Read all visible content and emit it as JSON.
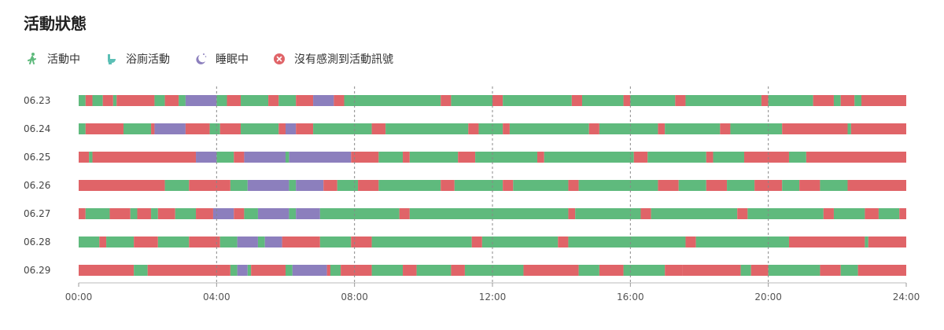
{
  "title": "活動狀態",
  "legend": [
    {
      "key": "active",
      "label": "活動中",
      "color": "#5fba7d",
      "icon": "walking-person-icon"
    },
    {
      "key": "bath",
      "label": "浴廁活動",
      "color": "#5bbfb5",
      "icon": "toilet-icon"
    },
    {
      "key": "sleep",
      "label": "睡眠中",
      "color": "#8c7fbd",
      "icon": "moon-sleep-icon"
    },
    {
      "key": "none",
      "label": "沒有感測到活動訊號",
      "color": "#e06468",
      "icon": "x-circle-icon"
    }
  ],
  "chart_data": {
    "type": "timeline",
    "x_unit": "hours",
    "xlim": [
      0,
      24
    ],
    "xticks": [
      "00:00",
      "04:00",
      "08:00",
      "12:00",
      "16:00",
      "20:00",
      "24:00"
    ],
    "grid_vertical": true,
    "colors": {
      "active": "#5fba7d",
      "bath": "#5bbfb5",
      "sleep": "#8c7fbd",
      "none": "#e06468"
    },
    "rows": [
      {
        "label": "06.23",
        "segments": [
          [
            0,
            0.2,
            "active"
          ],
          [
            0.2,
            0.4,
            "none"
          ],
          [
            0.4,
            0.7,
            "active"
          ],
          [
            0.7,
            1.0,
            "none"
          ],
          [
            1.0,
            1.1,
            "active"
          ],
          [
            1.1,
            2.2,
            "none"
          ],
          [
            2.2,
            2.5,
            "active"
          ],
          [
            2.5,
            2.9,
            "none"
          ],
          [
            2.9,
            3.1,
            "active"
          ],
          [
            3.1,
            4.0,
            "sleep"
          ],
          [
            4.0,
            4.3,
            "active"
          ],
          [
            4.3,
            4.7,
            "none"
          ],
          [
            4.7,
            5.5,
            "active"
          ],
          [
            5.5,
            5.8,
            "none"
          ],
          [
            5.8,
            6.3,
            "active"
          ],
          [
            6.3,
            6.8,
            "none"
          ],
          [
            6.8,
            7.4,
            "sleep"
          ],
          [
            7.4,
            7.7,
            "none"
          ],
          [
            7.7,
            10.5,
            "active"
          ],
          [
            10.5,
            10.8,
            "none"
          ],
          [
            10.8,
            12.0,
            "active"
          ],
          [
            12.0,
            12.3,
            "none"
          ],
          [
            12.3,
            14.3,
            "active"
          ],
          [
            14.3,
            14.6,
            "none"
          ],
          [
            14.6,
            15.8,
            "active"
          ],
          [
            15.8,
            16.0,
            "none"
          ],
          [
            16.0,
            17.3,
            "active"
          ],
          [
            17.3,
            17.6,
            "none"
          ],
          [
            17.6,
            19.8,
            "active"
          ],
          [
            19.8,
            20.0,
            "none"
          ],
          [
            20.0,
            21.3,
            "active"
          ],
          [
            21.3,
            21.9,
            "none"
          ],
          [
            21.9,
            22.1,
            "active"
          ],
          [
            22.1,
            22.5,
            "none"
          ],
          [
            22.5,
            22.7,
            "active"
          ],
          [
            22.7,
            24.0,
            "none"
          ]
        ]
      },
      {
        "label": "06.24",
        "segments": [
          [
            0,
            0.2,
            "active"
          ],
          [
            0.2,
            1.3,
            "none"
          ],
          [
            1.3,
            2.1,
            "active"
          ],
          [
            2.1,
            2.2,
            "none"
          ],
          [
            2.2,
            3.1,
            "sleep"
          ],
          [
            3.1,
            3.8,
            "none"
          ],
          [
            3.8,
            4.1,
            "active"
          ],
          [
            4.1,
            4.7,
            "none"
          ],
          [
            4.7,
            5.8,
            "active"
          ],
          [
            5.8,
            6.0,
            "none"
          ],
          [
            6.0,
            6.3,
            "sleep"
          ],
          [
            6.3,
            6.8,
            "none"
          ],
          [
            6.8,
            8.5,
            "active"
          ],
          [
            8.5,
            8.9,
            "none"
          ],
          [
            8.9,
            11.3,
            "active"
          ],
          [
            11.3,
            11.6,
            "none"
          ],
          [
            11.6,
            12.3,
            "active"
          ],
          [
            12.3,
            12.5,
            "none"
          ],
          [
            12.5,
            14.8,
            "active"
          ],
          [
            14.8,
            15.1,
            "none"
          ],
          [
            15.1,
            16.8,
            "active"
          ],
          [
            16.8,
            17.0,
            "none"
          ],
          [
            17.0,
            18.6,
            "active"
          ],
          [
            18.6,
            18.9,
            "none"
          ],
          [
            18.9,
            20.4,
            "active"
          ],
          [
            20.4,
            22.3,
            "none"
          ],
          [
            22.3,
            22.4,
            "active"
          ],
          [
            22.4,
            24.0,
            "none"
          ]
        ]
      },
      {
        "label": "06.25",
        "segments": [
          [
            0,
            0.3,
            "none"
          ],
          [
            0.3,
            0.4,
            "active"
          ],
          [
            0.4,
            3.4,
            "none"
          ],
          [
            3.4,
            4.0,
            "sleep"
          ],
          [
            4.0,
            4.5,
            "active"
          ],
          [
            4.5,
            4.8,
            "none"
          ],
          [
            4.8,
            6.0,
            "sleep"
          ],
          [
            6.0,
            6.1,
            "active"
          ],
          [
            6.1,
            7.9,
            "sleep"
          ],
          [
            7.9,
            8.7,
            "none"
          ],
          [
            8.7,
            9.4,
            "active"
          ],
          [
            9.4,
            9.6,
            "none"
          ],
          [
            9.6,
            11.0,
            "active"
          ],
          [
            11.0,
            11.5,
            "none"
          ],
          [
            11.5,
            13.3,
            "active"
          ],
          [
            13.3,
            13.5,
            "none"
          ],
          [
            13.5,
            16.1,
            "active"
          ],
          [
            16.1,
            16.5,
            "none"
          ],
          [
            16.5,
            18.2,
            "active"
          ],
          [
            18.2,
            18.4,
            "none"
          ],
          [
            18.4,
            19.3,
            "active"
          ],
          [
            19.3,
            20.6,
            "none"
          ],
          [
            20.6,
            21.1,
            "active"
          ],
          [
            21.1,
            24.0,
            "none"
          ]
        ]
      },
      {
        "label": "06.26",
        "segments": [
          [
            0,
            2.5,
            "none"
          ],
          [
            2.5,
            3.2,
            "active"
          ],
          [
            3.2,
            4.4,
            "none"
          ],
          [
            4.4,
            4.9,
            "active"
          ],
          [
            4.9,
            6.1,
            "sleep"
          ],
          [
            6.1,
            6.3,
            "active"
          ],
          [
            6.3,
            7.1,
            "sleep"
          ],
          [
            7.1,
            7.5,
            "none"
          ],
          [
            7.5,
            8.1,
            "active"
          ],
          [
            8.1,
            8.7,
            "none"
          ],
          [
            8.7,
            10.5,
            "active"
          ],
          [
            10.5,
            10.9,
            "none"
          ],
          [
            10.9,
            12.3,
            "active"
          ],
          [
            12.3,
            12.6,
            "none"
          ],
          [
            12.6,
            14.2,
            "active"
          ],
          [
            14.2,
            14.5,
            "none"
          ],
          [
            14.5,
            16.8,
            "active"
          ],
          [
            16.8,
            17.4,
            "none"
          ],
          [
            17.4,
            18.2,
            "active"
          ],
          [
            18.2,
            18.8,
            "none"
          ],
          [
            18.8,
            19.6,
            "active"
          ],
          [
            19.6,
            20.4,
            "none"
          ],
          [
            20.4,
            20.9,
            "active"
          ],
          [
            20.9,
            21.5,
            "none"
          ],
          [
            21.5,
            22.3,
            "active"
          ],
          [
            22.3,
            24.0,
            "none"
          ]
        ]
      },
      {
        "label": "06.27",
        "segments": [
          [
            0,
            0.2,
            "none"
          ],
          [
            0.2,
            0.9,
            "active"
          ],
          [
            0.9,
            1.5,
            "none"
          ],
          [
            1.5,
            1.7,
            "active"
          ],
          [
            1.7,
            2.1,
            "none"
          ],
          [
            2.1,
            2.3,
            "active"
          ],
          [
            2.3,
            2.8,
            "none"
          ],
          [
            2.8,
            3.4,
            "active"
          ],
          [
            3.4,
            3.9,
            "none"
          ],
          [
            3.9,
            4.5,
            "sleep"
          ],
          [
            4.5,
            4.8,
            "none"
          ],
          [
            4.8,
            5.2,
            "active"
          ],
          [
            5.2,
            6.1,
            "sleep"
          ],
          [
            6.1,
            6.3,
            "active"
          ],
          [
            6.3,
            7.0,
            "sleep"
          ],
          [
            7.0,
            9.3,
            "active"
          ],
          [
            9.3,
            9.6,
            "none"
          ],
          [
            9.6,
            14.2,
            "active"
          ],
          [
            14.2,
            14.4,
            "none"
          ],
          [
            14.4,
            16.3,
            "active"
          ],
          [
            16.3,
            16.6,
            "none"
          ],
          [
            16.6,
            19.1,
            "active"
          ],
          [
            19.1,
            19.4,
            "none"
          ],
          [
            19.4,
            21.6,
            "active"
          ],
          [
            21.6,
            21.9,
            "none"
          ],
          [
            21.9,
            22.8,
            "active"
          ],
          [
            22.8,
            23.2,
            "none"
          ],
          [
            23.2,
            23.8,
            "active"
          ],
          [
            23.8,
            24.0,
            "none"
          ]
        ]
      },
      {
        "label": "06.28",
        "segments": [
          [
            0,
            0.6,
            "active"
          ],
          [
            0.6,
            0.8,
            "none"
          ],
          [
            0.8,
            1.6,
            "active"
          ],
          [
            1.6,
            2.3,
            "none"
          ],
          [
            2.3,
            3.2,
            "active"
          ],
          [
            3.2,
            4.1,
            "none"
          ],
          [
            4.1,
            4.6,
            "active"
          ],
          [
            4.6,
            5.2,
            "sleep"
          ],
          [
            5.2,
            5.4,
            "active"
          ],
          [
            5.4,
            5.9,
            "sleep"
          ],
          [
            5.9,
            7.0,
            "none"
          ],
          [
            7.0,
            7.9,
            "active"
          ],
          [
            7.9,
            8.5,
            "none"
          ],
          [
            8.5,
            11.4,
            "active"
          ],
          [
            11.4,
            11.7,
            "none"
          ],
          [
            11.7,
            13.9,
            "active"
          ],
          [
            13.9,
            14.2,
            "none"
          ],
          [
            14.2,
            17.6,
            "active"
          ],
          [
            17.6,
            17.9,
            "none"
          ],
          [
            17.9,
            20.6,
            "active"
          ],
          [
            20.6,
            22.8,
            "none"
          ],
          [
            22.8,
            22.9,
            "active"
          ],
          [
            22.9,
            24.0,
            "none"
          ]
        ]
      },
      {
        "label": "06.29",
        "segments": [
          [
            0,
            1.6,
            "none"
          ],
          [
            1.6,
            2.0,
            "active"
          ],
          [
            2.0,
            4.4,
            "none"
          ],
          [
            4.4,
            4.6,
            "active"
          ],
          [
            4.6,
            4.9,
            "sleep"
          ],
          [
            4.9,
            5.0,
            "active"
          ],
          [
            5.0,
            6.0,
            "none"
          ],
          [
            6.0,
            6.2,
            "active"
          ],
          [
            6.2,
            7.2,
            "sleep"
          ],
          [
            7.2,
            7.3,
            "none"
          ],
          [
            7.3,
            7.6,
            "active"
          ],
          [
            7.6,
            8.5,
            "none"
          ],
          [
            8.5,
            9.4,
            "active"
          ],
          [
            9.4,
            9.8,
            "none"
          ],
          [
            9.8,
            10.8,
            "active"
          ],
          [
            10.8,
            11.2,
            "none"
          ],
          [
            11.2,
            12.9,
            "active"
          ],
          [
            12.9,
            14.5,
            "none"
          ],
          [
            14.5,
            15.1,
            "active"
          ],
          [
            15.1,
            15.8,
            "none"
          ],
          [
            15.8,
            17.0,
            "active"
          ],
          [
            17.0,
            17.5,
            "none"
          ],
          [
            17.5,
            19.2,
            "none"
          ],
          [
            19.2,
            19.5,
            "active"
          ],
          [
            19.5,
            20.0,
            "none"
          ],
          [
            20.0,
            21.5,
            "active"
          ],
          [
            21.5,
            22.1,
            "none"
          ],
          [
            22.1,
            22.6,
            "active"
          ],
          [
            22.6,
            24.0,
            "none"
          ]
        ]
      }
    ]
  }
}
